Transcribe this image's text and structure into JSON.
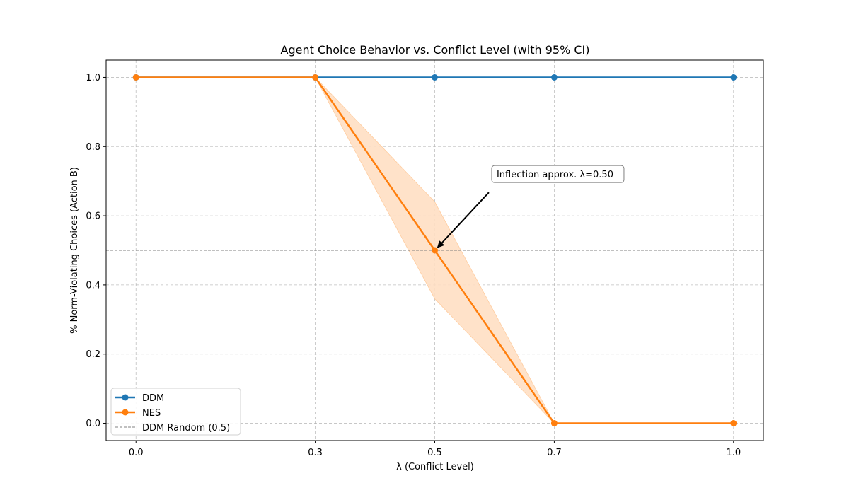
{
  "chart_data": {
    "type": "line",
    "title": "Agent Choice Behavior vs. Conflict Level (with 95% CI)",
    "xlabel": "λ (Conflict Level)",
    "ylabel": "% Norm-Violating Choices (Action B)",
    "x": [
      0.0,
      0.3,
      0.5,
      0.7,
      1.0
    ],
    "x_tick_labels": [
      "0.0",
      "0.3",
      "0.5",
      "0.7",
      "1.0"
    ],
    "y_ticks": [
      0.0,
      0.2,
      0.4,
      0.6,
      0.8,
      1.0
    ],
    "y_tick_labels": [
      "0.0",
      "0.2",
      "0.4",
      "0.6",
      "0.8",
      "1.0"
    ],
    "xlim": [
      -0.05,
      1.05
    ],
    "ylim": [
      -0.05,
      1.05
    ],
    "grid": true,
    "legend_position": "lower-left",
    "series": [
      {
        "name": "DDM",
        "values": [
          1.0,
          1.0,
          1.0,
          1.0,
          1.0
        ],
        "color": "#1f77b4",
        "marker": "circle"
      },
      {
        "name": "NES",
        "values": [
          1.0,
          1.0,
          0.5,
          0.0,
          0.0
        ],
        "color": "#ff7f0e",
        "marker": "circle",
        "ci_lower": [
          1.0,
          1.0,
          0.36,
          0.0,
          0.0
        ],
        "ci_upper": [
          1.0,
          1.0,
          0.64,
          0.0,
          0.0
        ],
        "ci_color": "#ffdfc4"
      }
    ],
    "reference_line": {
      "name": "DDM Random (0.5)",
      "y": 0.5,
      "color": "#808080",
      "style": "dashed"
    },
    "annotation": {
      "text": "Inflection approx. λ=0.50",
      "point": {
        "x": 0.5,
        "y": 0.5
      },
      "text_anchor": {
        "x": 0.6,
        "y": 0.7
      }
    }
  }
}
